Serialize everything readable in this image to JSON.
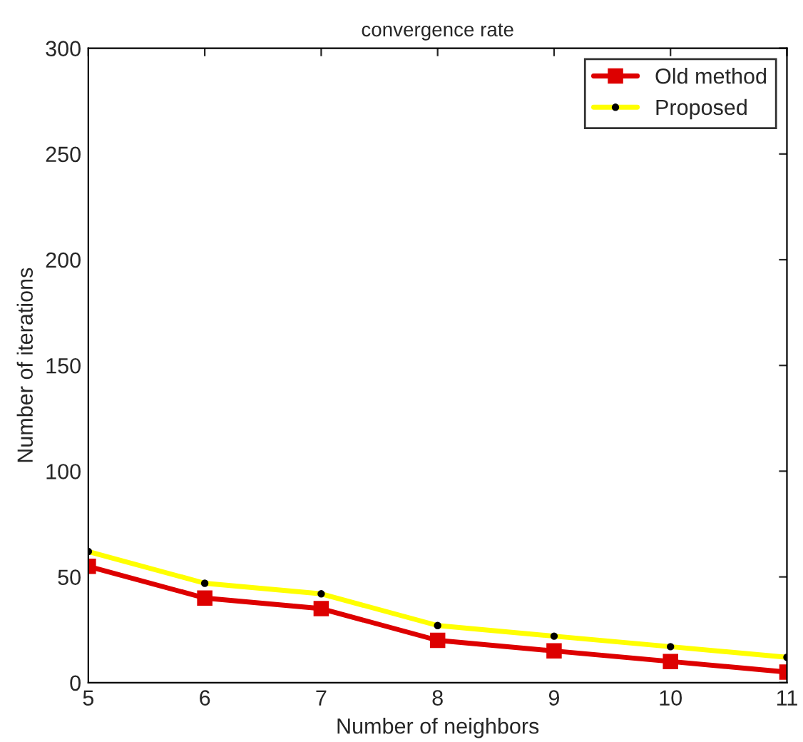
{
  "chart_data": {
    "type": "line",
    "title": "convergence rate",
    "xlabel": "Number of neighbors",
    "ylabel": "Number of iterations",
    "x": [
      5,
      6,
      7,
      8,
      9,
      10,
      11
    ],
    "series": [
      {
        "name": "Old method",
        "color": "#dd0000",
        "marker": "square",
        "values": [
          55,
          40,
          35,
          20,
          15,
          10,
          5
        ]
      },
      {
        "name": "Proposed",
        "color": "#ffff00",
        "marker": "circle",
        "values": [
          62,
          47,
          42,
          27,
          22,
          17,
          12
        ]
      }
    ],
    "xlim": [
      5,
      11
    ],
    "xticks": [
      5,
      6,
      7,
      8,
      9,
      10,
      11
    ],
    "ylim": [
      0,
      300
    ],
    "yticks": [
      0,
      50,
      100,
      150,
      200,
      250,
      300
    ],
    "grid": false,
    "legend": "top right",
    "line_style": "solid"
  }
}
